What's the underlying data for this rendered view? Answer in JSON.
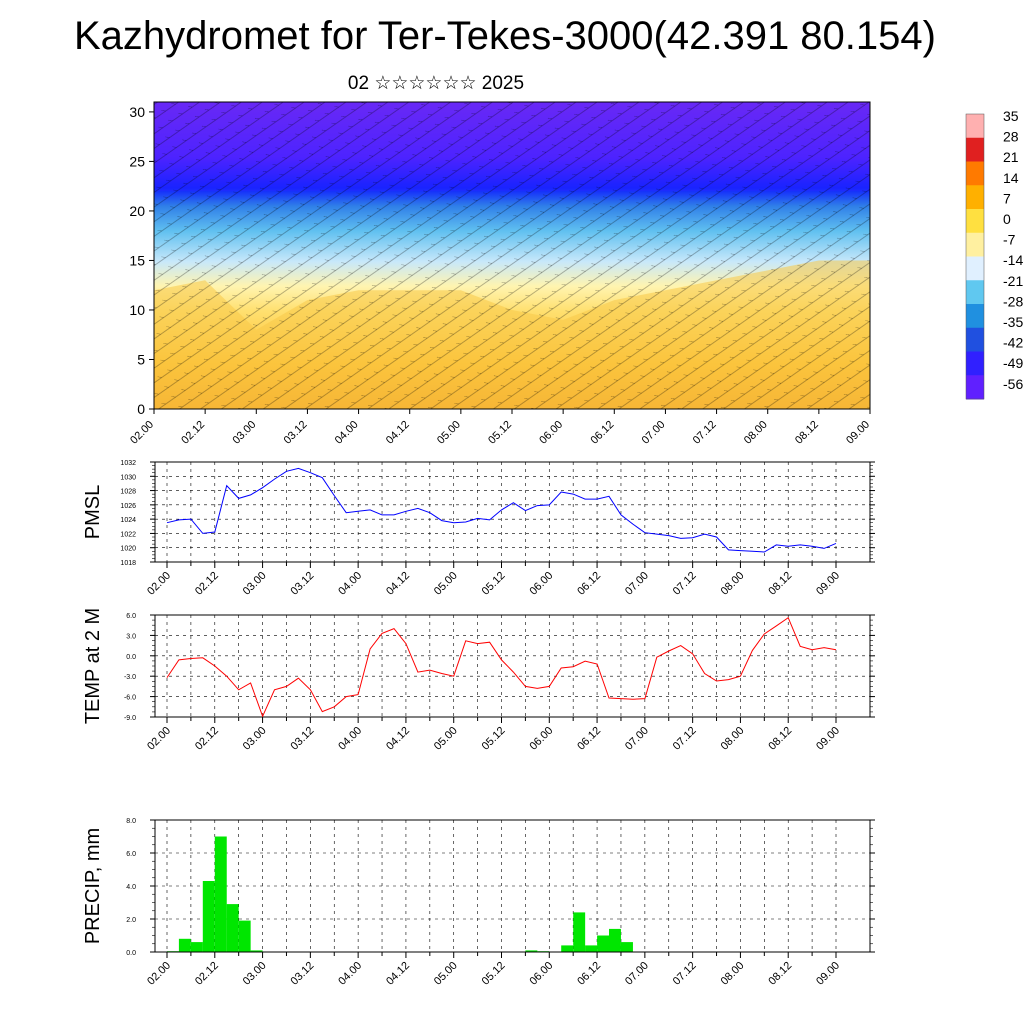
{
  "page": {
    "title": "Kazhydromet for Ter-Tekes-3000(42.391 80.154)",
    "subtitle": "02 ☆☆☆☆☆☆ 2025"
  },
  "time_labels": [
    "02.00",
    "02.12",
    "03.00",
    "03.12",
    "04.00",
    "04.12",
    "05.00",
    "05.12",
    "06.00",
    "06.12",
    "07.00",
    "07.12",
    "08.00",
    "08.12",
    "09.00"
  ],
  "colorbar": {
    "labels": [
      "35",
      "28",
      "21",
      "14",
      "7",
      "0",
      "-7",
      "-14",
      "-21",
      "-28",
      "-35",
      "-42",
      "-49",
      "-56"
    ],
    "colors": [
      "#ffb0b0",
      "#e02020",
      "#ff7a00",
      "#ffb000",
      "#ffe040",
      "#fff0a0",
      "#e0f0ff",
      "#60c8f0",
      "#2090e0",
      "#2050e0",
      "#3020ff",
      "#6020ff"
    ]
  },
  "chart_data": [
    {
      "type": "heatmap",
      "name": "vertical cross-section",
      "x_labels": [
        "02.00",
        "02.12",
        "03.00",
        "03.12",
        "04.00",
        "04.12",
        "05.00",
        "05.12",
        "06.00",
        "06.12",
        "07.00",
        "07.12",
        "08.00",
        "08.12",
        "09.00"
      ],
      "ylim": [
        0,
        31
      ],
      "yticks": [
        0,
        5,
        10,
        15,
        20,
        25,
        30
      ],
      "boundary_heights_by_time": {
        "warm_top": [
          12,
          13,
          8,
          11,
          12,
          12,
          12,
          10,
          9,
          11,
          12,
          13,
          14,
          15,
          15
        ],
        "cold_bottom": [
          22,
          22,
          22,
          22,
          22,
          22,
          22,
          22,
          22,
          22,
          22,
          22,
          22,
          22,
          22
        ]
      }
    },
    {
      "type": "line",
      "ylabel": "PMSL",
      "ylim": [
        1018,
        1032
      ],
      "yticks": [
        1018,
        1020,
        1022,
        1024,
        1026,
        1028,
        1030,
        1032
      ],
      "color": "#0000ff",
      "values": [
        1023.5,
        1023.9,
        1024.0,
        1022.0,
        1022.2,
        1028.7,
        1026.9,
        1027.4,
        1028.4,
        1029.6,
        1030.7,
        1031.1,
        1030.5,
        1029.8,
        1027.3,
        1024.9,
        1025.1,
        1025.3,
        1024.6,
        1024.6,
        1025.1,
        1025.5,
        1024.9,
        1023.8,
        1023.5,
        1023.6,
        1024.1,
        1023.9,
        1025.3,
        1026.3,
        1025.2,
        1025.9,
        1026.0,
        1027.8,
        1027.5,
        1026.8,
        1026.8,
        1027.2,
        1024.6,
        1023.3,
        1022.1,
        1021.9,
        1021.7,
        1021.3,
        1021.4,
        1021.9,
        1021.5,
        1019.7,
        1019.6,
        1019.5,
        1019.4,
        1020.4,
        1020.2,
        1020.4,
        1020.2,
        1019.9,
        1020.6
      ]
    },
    {
      "type": "line",
      "ylabel": "TEMP at 2 M",
      "ylim": [
        -9,
        6
      ],
      "yticks": [
        -9,
        -6,
        -3,
        0,
        3,
        6
      ],
      "tick_labels": [
        "-9.0",
        "-6.0",
        "-3.0",
        "0.0",
        "3.0",
        "6.0"
      ],
      "color": "#ff0000",
      "values": [
        -3.2,
        -0.6,
        -0.4,
        -0.3,
        -1.5,
        -3.0,
        -5.0,
        -4.0,
        -8.9,
        -5.0,
        -4.5,
        -3.3,
        -5.0,
        -8.2,
        -7.5,
        -6.0,
        -5.7,
        1.0,
        3.3,
        4.0,
        1.8,
        -2.4,
        -2.1,
        -2.6,
        -3.0,
        2.2,
        1.8,
        2.0,
        -0.6,
        -2.4,
        -4.5,
        -4.8,
        -4.5,
        -1.8,
        -1.6,
        -0.8,
        -1.2,
        -6.2,
        -6.3,
        -6.4,
        -6.3,
        -0.2,
        0.7,
        1.5,
        0.3,
        -2.6,
        -3.7,
        -3.5,
        -3.0,
        0.8,
        3.2,
        4.4,
        5.6,
        1.4,
        0.9,
        1.2,
        0.9
      ]
    },
    {
      "type": "bar",
      "ylabel": "PRECIP, mm",
      "ylim": [
        0,
        8
      ],
      "yticks": [
        0,
        2,
        4,
        6,
        8
      ],
      "tick_labels": [
        "0.0",
        "2.0",
        "4.0",
        "6.0",
        "8.0"
      ],
      "color": "#00e600",
      "values": [
        0.05,
        0.8,
        0.6,
        4.3,
        7.0,
        2.9,
        1.9,
        0.1,
        0,
        0,
        0,
        0,
        0,
        0,
        0,
        0,
        0,
        0,
        0,
        0,
        0,
        0,
        0,
        0,
        0,
        0,
        0,
        0,
        0,
        0,
        0.1,
        0.05,
        0,
        0.4,
        2.4,
        0.4,
        1.0,
        1.4,
        0.6,
        0,
        0,
        0,
        0,
        0,
        0,
        0,
        0,
        0,
        0,
        0,
        0,
        0,
        0,
        0,
        0,
        0,
        0
      ]
    }
  ]
}
